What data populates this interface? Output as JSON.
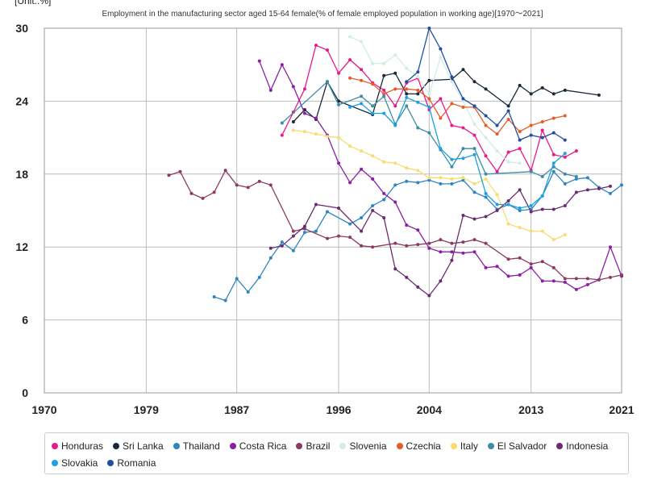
{
  "chart_data": {
    "type": "line",
    "unit_label": "[Unit:.%]",
    "title": "Employment in the manufacturing sector aged 15-64 female(% of female employed population in working age)[1970～2021]",
    "xlim": [
      1970,
      2021
    ],
    "ylim": [
      0,
      30
    ],
    "x_ticks": [
      "1970",
      "1979",
      "1987",
      "1996",
      "2004",
      "2013",
      "2021"
    ],
    "y_ticks": [
      "0",
      "6",
      "12",
      "18",
      "24",
      "30"
    ],
    "grid": true,
    "legend_position": "bottom",
    "series": [
      {
        "name": "Honduras",
        "color": "#e8198b",
        "points": [
          [
            1991,
            21.2
          ],
          [
            1992,
            23.1
          ],
          [
            1993,
            25.0
          ],
          [
            1994,
            28.6
          ],
          [
            1995,
            28.2
          ],
          [
            1996,
            26.3
          ],
          [
            1997,
            27.4
          ],
          [
            1998,
            26.6
          ],
          [
            1999,
            25.5
          ],
          [
            2000,
            24.9
          ],
          [
            2001,
            23.6
          ],
          [
            2002,
            25.5
          ],
          [
            2003,
            25.9
          ],
          [
            2004,
            23.3
          ],
          [
            2005,
            24.2
          ],
          [
            2006,
            22.0
          ],
          [
            2007,
            21.8
          ],
          [
            2008,
            21.2
          ],
          [
            2009,
            19.5
          ],
          [
            2010,
            18.2
          ],
          [
            2011,
            19.8
          ],
          [
            2012,
            20.1
          ],
          [
            2013,
            18.3
          ],
          [
            2014,
            21.6
          ],
          [
            2015,
            19.6
          ],
          [
            2016,
            19.4
          ],
          [
            2017,
            19.9
          ]
        ]
      },
      {
        "name": "Sri Lanka",
        "color": "#1a2a3a",
        "points": [
          [
            1992,
            22.3
          ],
          [
            1993,
            23.3
          ],
          [
            1994,
            22.5
          ],
          [
            1995,
            25.6
          ],
          [
            1996,
            24.0
          ],
          [
            1999,
            22.9
          ],
          [
            2000,
            26.1
          ],
          [
            2001,
            26.3
          ],
          [
            2002,
            24.6
          ],
          [
            2003,
            24.6
          ],
          [
            2004,
            25.7
          ],
          [
            2006,
            25.8
          ],
          [
            2007,
            26.6
          ],
          [
            2008,
            25.6
          ],
          [
            2009,
            25.0
          ],
          [
            2011,
            23.6
          ],
          [
            2012,
            25.3
          ],
          [
            2013,
            24.6
          ],
          [
            2014,
            25.1
          ],
          [
            2015,
            24.6
          ],
          [
            2016,
            24.9
          ],
          [
            2019,
            24.5
          ]
        ]
      },
      {
        "name": "Thailand",
        "color": "#2e86c1",
        "points": [
          [
            1985,
            7.9
          ],
          [
            1986,
            7.6
          ],
          [
            1987,
            9.4
          ],
          [
            1988,
            8.3
          ],
          [
            1989,
            9.5
          ],
          [
            1990,
            11.1
          ],
          [
            1991,
            12.4
          ],
          [
            1992,
            11.7
          ],
          [
            1993,
            13.2
          ],
          [
            1994,
            13.3
          ],
          [
            1995,
            14.9
          ],
          [
            1997,
            13.9
          ],
          [
            1998,
            14.4
          ],
          [
            1999,
            15.4
          ],
          [
            2000,
            15.9
          ],
          [
            2001,
            17.1
          ],
          [
            2002,
            17.4
          ],
          [
            2003,
            17.3
          ],
          [
            2004,
            17.5
          ],
          [
            2005,
            17.2
          ],
          [
            2006,
            17.2
          ],
          [
            2007,
            17.5
          ],
          [
            2008,
            16.5
          ],
          [
            2009,
            16.1
          ],
          [
            2010,
            15.1
          ],
          [
            2011,
            15.5
          ],
          [
            2012,
            15.0
          ],
          [
            2013,
            15.1
          ],
          [
            2014,
            16.2
          ],
          [
            2015,
            18.2
          ],
          [
            2016,
            17.2
          ],
          [
            2017,
            17.6
          ],
          [
            2018,
            17.7
          ],
          [
            2019,
            16.9
          ],
          [
            2020,
            16.4
          ],
          [
            2021,
            17.1
          ]
        ]
      },
      {
        "name": "Costa Rica",
        "color": "#8a1fa5",
        "points": [
          [
            1989,
            27.3
          ],
          [
            1990,
            24.9
          ],
          [
            1991,
            27.0
          ],
          [
            1992,
            25.2
          ],
          [
            1993,
            23.0
          ],
          [
            1994,
            22.6
          ],
          [
            1995,
            21.2
          ],
          [
            1996,
            18.9
          ],
          [
            1997,
            17.3
          ],
          [
            1998,
            18.4
          ],
          [
            1999,
            17.6
          ],
          [
            2000,
            16.4
          ],
          [
            2001,
            15.7
          ],
          [
            2002,
            13.8
          ],
          [
            2003,
            13.4
          ],
          [
            2004,
            11.9
          ],
          [
            2005,
            11.6
          ],
          [
            2006,
            11.6
          ],
          [
            2007,
            11.5
          ],
          [
            2008,
            11.6
          ],
          [
            2009,
            10.3
          ],
          [
            2010,
            10.4
          ],
          [
            2011,
            9.6
          ],
          [
            2012,
            9.7
          ],
          [
            2013,
            10.3
          ],
          [
            2014,
            9.2
          ],
          [
            2015,
            9.2
          ],
          [
            2016,
            9.1
          ],
          [
            2017,
            8.5
          ],
          [
            2018,
            8.9
          ],
          [
            2019,
            9.3
          ],
          [
            2020,
            12.0
          ],
          [
            2021,
            9.6
          ]
        ]
      },
      {
        "name": "Brazil",
        "color": "#8b3a62",
        "points": [
          [
            1981,
            17.9
          ],
          [
            1982,
            18.2
          ],
          [
            1983,
            16.4
          ],
          [
            1984,
            16.0
          ],
          [
            1985,
            16.5
          ],
          [
            1986,
            18.3
          ],
          [
            1987,
            17.1
          ],
          [
            1988,
            16.9
          ],
          [
            1989,
            17.4
          ],
          [
            1990,
            17.1
          ],
          [
            1992,
            13.3
          ],
          [
            1993,
            13.5
          ],
          [
            1995,
            12.7
          ],
          [
            1996,
            12.9
          ],
          [
            1997,
            12.8
          ],
          [
            1998,
            12.1
          ],
          [
            1999,
            12.0
          ],
          [
            2001,
            12.3
          ],
          [
            2002,
            12.1
          ],
          [
            2003,
            12.2
          ],
          [
            2004,
            12.3
          ],
          [
            2005,
            12.6
          ],
          [
            2006,
            12.3
          ],
          [
            2007,
            12.4
          ],
          [
            2008,
            12.6
          ],
          [
            2009,
            12.3
          ],
          [
            2011,
            11.0
          ],
          [
            2012,
            11.1
          ],
          [
            2013,
            10.6
          ],
          [
            2014,
            10.8
          ],
          [
            2015,
            10.3
          ],
          [
            2016,
            9.4
          ],
          [
            2017,
            9.4
          ],
          [
            2018,
            9.4
          ],
          [
            2019,
            9.3
          ],
          [
            2020,
            9.5
          ],
          [
            2021,
            9.7
          ]
        ]
      },
      {
        "name": "Slovenia",
        "color": "#d4ece5",
        "points": [
          [
            1997,
            29.3
          ],
          [
            1998,
            28.9
          ],
          [
            1999,
            27.1
          ],
          [
            2000,
            27.1
          ],
          [
            2001,
            27.8
          ],
          [
            2002,
            26.7
          ],
          [
            2003,
            26.0
          ],
          [
            2004,
            24.6
          ],
          [
            2005,
            27.6
          ],
          [
            2006,
            25.6
          ],
          [
            2007,
            24.0
          ],
          [
            2008,
            22.1
          ],
          [
            2009,
            21.0
          ],
          [
            2010,
            19.9
          ],
          [
            2011,
            19.0
          ],
          [
            2012,
            18.9
          ]
        ]
      },
      {
        "name": "Czechia",
        "color": "#e55c2c",
        "points": [
          [
            1997,
            25.9
          ],
          [
            1998,
            25.7
          ],
          [
            1999,
            25.4
          ],
          [
            2000,
            24.6
          ],
          [
            2001,
            25.0
          ],
          [
            2002,
            25.0
          ],
          [
            2003,
            24.9
          ],
          [
            2004,
            24.2
          ],
          [
            2005,
            22.6
          ],
          [
            2006,
            23.8
          ],
          [
            2007,
            23.5
          ],
          [
            2008,
            23.5
          ],
          [
            2009,
            22.0
          ],
          [
            2010,
            21.3
          ],
          [
            2011,
            22.5
          ],
          [
            2012,
            21.5
          ],
          [
            2013,
            22.0
          ],
          [
            2014,
            22.3
          ],
          [
            2015,
            22.6
          ],
          [
            2016,
            22.8
          ]
        ]
      },
      {
        "name": "Italy",
        "color": "#f7dc6f",
        "points": [
          [
            1992,
            21.6
          ],
          [
            1993,
            21.5
          ],
          [
            1994,
            21.3
          ],
          [
            1995,
            21.1
          ],
          [
            1996,
            21.0
          ],
          [
            1997,
            20.3
          ],
          [
            1998,
            19.9
          ],
          [
            1999,
            19.5
          ],
          [
            2000,
            19.0
          ],
          [
            2001,
            18.9
          ],
          [
            2002,
            18.5
          ],
          [
            2003,
            18.3
          ],
          [
            2004,
            17.7
          ],
          [
            2005,
            17.7
          ],
          [
            2006,
            17.6
          ],
          [
            2007,
            17.7
          ],
          [
            2008,
            17.2
          ],
          [
            2009,
            17.6
          ],
          [
            2010,
            16.3
          ],
          [
            2011,
            13.9
          ],
          [
            2012,
            13.6
          ],
          [
            2013,
            13.3
          ],
          [
            2014,
            13.3
          ],
          [
            2015,
            12.6
          ],
          [
            2016,
            13.0
          ]
        ]
      },
      {
        "name": "El Salvador",
        "color": "#3d8ca8",
        "points": [
          [
            1991,
            22.2
          ],
          [
            1995,
            25.6
          ],
          [
            1996,
            23.7
          ],
          [
            1998,
            24.4
          ],
          [
            1999,
            23.6
          ],
          [
            2000,
            24.4
          ],
          [
            2001,
            22.1
          ],
          [
            2002,
            23.6
          ],
          [
            2003,
            21.8
          ],
          [
            2004,
            21.4
          ],
          [
            2005,
            20.0
          ],
          [
            2006,
            18.6
          ],
          [
            2007,
            20.1
          ],
          [
            2008,
            20.1
          ],
          [
            2009,
            18.0
          ],
          [
            2013,
            18.2
          ],
          [
            2014,
            17.8
          ],
          [
            2015,
            18.6
          ],
          [
            2016,
            18.0
          ],
          [
            2017,
            17.8
          ]
        ]
      },
      {
        "name": "Indonesia",
        "color": "#6a2c70",
        "points": [
          [
            1990,
            11.9
          ],
          [
            1991,
            12.1
          ],
          [
            1992,
            12.9
          ],
          [
            1993,
            13.7
          ],
          [
            1994,
            15.5
          ],
          [
            1996,
            15.2
          ],
          [
            1998,
            13.3
          ],
          [
            1999,
            15.0
          ],
          [
            2000,
            14.4
          ],
          [
            2001,
            10.2
          ],
          [
            2002,
            9.5
          ],
          [
            2003,
            8.7
          ],
          [
            2004,
            8.0
          ],
          [
            2005,
            9.2
          ],
          [
            2006,
            10.9
          ],
          [
            2007,
            14.6
          ],
          [
            2008,
            14.3
          ],
          [
            2009,
            14.5
          ],
          [
            2010,
            15.0
          ],
          [
            2011,
            15.8
          ],
          [
            2012,
            16.7
          ],
          [
            2013,
            14.9
          ],
          [
            2014,
            15.1
          ],
          [
            2015,
            15.1
          ],
          [
            2016,
            15.4
          ],
          [
            2017,
            16.5
          ],
          [
            2018,
            16.7
          ],
          [
            2019,
            16.8
          ],
          [
            2020,
            17.0
          ]
        ]
      },
      {
        "name": "Slovakia",
        "color": "#1da1e2",
        "points": [
          [
            1997,
            23.5
          ],
          [
            1998,
            23.8
          ],
          [
            1999,
            23.0
          ],
          [
            2000,
            23.0
          ],
          [
            2001,
            22.0
          ],
          [
            2002,
            24.3
          ],
          [
            2003,
            23.9
          ],
          [
            2004,
            23.5
          ],
          [
            2005,
            20.1
          ],
          [
            2006,
            19.2
          ],
          [
            2007,
            19.3
          ],
          [
            2008,
            19.6
          ],
          [
            2009,
            16.4
          ],
          [
            2010,
            15.5
          ],
          [
            2011,
            15.5
          ],
          [
            2012,
            15.2
          ],
          [
            2013,
            15.4
          ],
          [
            2014,
            16.2
          ],
          [
            2015,
            18.9
          ],
          [
            2016,
            19.7
          ]
        ]
      },
      {
        "name": "Romania",
        "color": "#1f4fa0",
        "points": [
          [
            2002,
            25.6
          ],
          [
            2003,
            26.4
          ],
          [
            2004,
            30.0
          ],
          [
            2005,
            28.3
          ],
          [
            2006,
            26.0
          ],
          [
            2007,
            24.2
          ],
          [
            2008,
            23.6
          ],
          [
            2009,
            22.8
          ],
          [
            2010,
            22.0
          ],
          [
            2011,
            23.2
          ],
          [
            2012,
            20.8
          ],
          [
            2013,
            21.2
          ],
          [
            2014,
            21.0
          ],
          [
            2015,
            21.4
          ],
          [
            2016,
            20.8
          ]
        ]
      }
    ]
  }
}
